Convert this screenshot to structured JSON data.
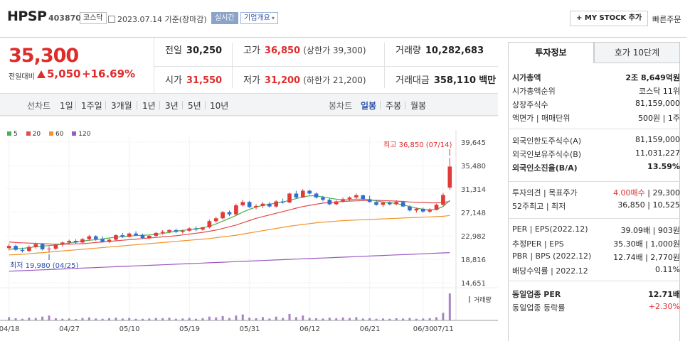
{
  "header": {
    "stock_name": "HPSP",
    "stock_code": "403870",
    "market": "코스닥",
    "date_text": "2023.07.14 기준(장마감)",
    "realtime_label": "실시간",
    "company_info_label": "기업개요",
    "mystock_label": "MY STOCK 추가",
    "quick_order_label": "빠른주문"
  },
  "price": {
    "current": "35,300",
    "change_label": "전일대비",
    "change": "5,050",
    "change_pct": "+16.69%"
  },
  "stats": {
    "prev_close_label": "전일",
    "prev_close": "30,250",
    "high_label": "고가",
    "high": "36,850",
    "upper_limit": "(상한가 39,300)",
    "volume_label": "거래량",
    "volume": "10,282,683",
    "open_label": "시가",
    "open": "31,550",
    "low_label": "저가",
    "low": "31,200",
    "lower_limit": "(하한가 21,200)",
    "amount_label": "거래대금",
    "amount": "358,110",
    "amount_unit": "백만"
  },
  "period_tabs": {
    "line_chart": "선차트",
    "items": [
      "1일",
      "1주일",
      "3개월",
      "1년",
      "3년",
      "5년",
      "10년"
    ],
    "candle_chart": "봉차트",
    "candle_items": [
      "일봉",
      "주봉",
      "월봉"
    ],
    "selected": "일봉"
  },
  "legend": [
    {
      "label": "5",
      "color": "#4caf50"
    },
    {
      "label": "20",
      "color": "#e34a4a"
    },
    {
      "label": "60",
      "color": "#f2932b"
    },
    {
      "label": "120",
      "color": "#9b59c4"
    }
  ],
  "chart_data": {
    "type": "candlestick",
    "y_ticks": [
      "39,645",
      "35,480",
      "31,314",
      "27,148",
      "22,982",
      "18,816",
      "14,651"
    ],
    "ylim": [
      14651,
      39645
    ],
    "x_labels": [
      "04/18",
      "04/27",
      "05/10",
      "05/19",
      "05/31",
      "06/12",
      "06/21",
      "06/30",
      "07/11"
    ],
    "max_annotation": "최고 36,850 (07/14)",
    "min_annotation": "최저 19,980 (04/25)",
    "volume_label": "거래량",
    "candles": [
      [
        20800,
        21600,
        20400,
        21200
      ],
      [
        21200,
        21500,
        20300,
        20500
      ],
      [
        20500,
        20900,
        20000,
        20300
      ],
      [
        20300,
        21300,
        20100,
        21000
      ],
      [
        21000,
        21800,
        20700,
        21500
      ],
      [
        21500,
        21700,
        20400,
        20600
      ],
      [
        20600,
        21100,
        19980,
        20700
      ],
      [
        20700,
        21600,
        20500,
        21400
      ],
      [
        21400,
        22000,
        21100,
        21800
      ],
      [
        21800,
        22300,
        21500,
        22100
      ],
      [
        22100,
        22400,
        21600,
        21800
      ],
      [
        21800,
        22600,
        21600,
        22400
      ],
      [
        22400,
        23200,
        22100,
        22900
      ],
      [
        22900,
        23100,
        22100,
        22400
      ],
      [
        22400,
        22900,
        21800,
        21900
      ],
      [
        21900,
        22500,
        21700,
        22300
      ],
      [
        22300,
        23300,
        22100,
        23100
      ],
      [
        23100,
        23500,
        22600,
        22800
      ],
      [
        22800,
        23600,
        22700,
        23400
      ],
      [
        23400,
        23800,
        22900,
        23100
      ],
      [
        23100,
        23400,
        22400,
        22600
      ],
      [
        22600,
        23100,
        22400,
        23000
      ],
      [
        23000,
        23700,
        22800,
        23500
      ],
      [
        23500,
        24000,
        23200,
        23700
      ],
      [
        23700,
        24200,
        23400,
        24000
      ],
      [
        24000,
        24300,
        23500,
        23700
      ],
      [
        23700,
        24100,
        23400,
        23900
      ],
      [
        23900,
        24500,
        23700,
        24300
      ],
      [
        24300,
        24700,
        23800,
        24100
      ],
      [
        24100,
        24600,
        23900,
        24500
      ],
      [
        24500,
        25900,
        24300,
        25600
      ],
      [
        25600,
        26400,
        25300,
        26100
      ],
      [
        26100,
        27400,
        25900,
        27200
      ],
      [
        27200,
        27500,
        26500,
        26800
      ],
      [
        26800,
        28700,
        26600,
        28400
      ],
      [
        28400,
        29400,
        28200,
        29000
      ],
      [
        29000,
        29200,
        27900,
        28100
      ],
      [
        28100,
        28600,
        27700,
        28300
      ],
      [
        28300,
        29000,
        27900,
        28700
      ],
      [
        28700,
        29000,
        28000,
        28200
      ],
      [
        28200,
        29300,
        28000,
        29100
      ],
      [
        29100,
        29600,
        28700,
        28900
      ],
      [
        28900,
        30700,
        28800,
        30500
      ],
      [
        30500,
        31000,
        29600,
        29800
      ],
      [
        29800,
        31300,
        29700,
        31000
      ],
      [
        31000,
        31200,
        30300,
        30500
      ],
      [
        30500,
        30700,
        29600,
        29800
      ],
      [
        29800,
        30100,
        29100,
        29400
      ],
      [
        29400,
        29700,
        28400,
        28600
      ],
      [
        28600,
        29300,
        28400,
        29100
      ],
      [
        29100,
        29800,
        28900,
        29500
      ],
      [
        29500,
        30000,
        29200,
        29800
      ],
      [
        29800,
        30500,
        29500,
        30200
      ],
      [
        30200,
        30300,
        29300,
        29500
      ],
      [
        29500,
        30100,
        28900,
        29000
      ],
      [
        29000,
        29300,
        28300,
        28500
      ],
      [
        28500,
        29100,
        28100,
        28900
      ],
      [
        28900,
        29100,
        28400,
        28600
      ],
      [
        28600,
        29300,
        28400,
        29000
      ],
      [
        29000,
        29200,
        28100,
        28200
      ],
      [
        28200,
        28400,
        27300,
        27500
      ],
      [
        27500,
        28000,
        27100,
        27800
      ],
      [
        27800,
        28000,
        27100,
        27300
      ],
      [
        27300,
        27900,
        27000,
        27600
      ],
      [
        27600,
        28700,
        27500,
        28500
      ],
      [
        28500,
        30600,
        28300,
        30250
      ],
      [
        31550,
        36850,
        31200,
        35300
      ]
    ],
    "volumes": [
      12,
      8,
      6,
      10,
      9,
      14,
      18,
      8,
      6,
      7,
      5,
      9,
      11,
      7,
      6,
      8,
      10,
      7,
      9,
      6,
      6,
      7,
      9,
      8,
      10,
      6,
      7,
      9,
      6,
      8,
      14,
      11,
      16,
      9,
      18,
      22,
      10,
      8,
      12,
      7,
      14,
      9,
      24,
      12,
      18,
      9,
      8,
      7,
      10,
      8,
      11,
      9,
      12,
      7,
      8,
      6,
      7,
      6,
      8,
      7,
      9,
      6,
      7,
      8,
      12,
      28,
      100
    ],
    "ma5": [
      20600,
      20700,
      20750,
      20900,
      21050,
      21150,
      21250,
      21350,
      21500,
      21700,
      21900,
      22050,
      22200,
      22300,
      22450,
      22600,
      22750,
      22850,
      22950,
      23050,
      23100,
      23150,
      23250,
      23400,
      23600,
      23800,
      23950,
      24100,
      24250,
      24400,
      24700,
      25100,
      25600,
      26100,
      26600,
      27200,
      27700,
      28100,
      28400,
      28600,
      28800,
      29000,
      29300,
      29600,
      29900,
      30100,
      30100,
      29900,
      29700,
      29500,
      29400,
      29400,
      29500,
      29500,
      29400,
      29200,
      29000,
      28900,
      28700,
      28500,
      28200,
      27900,
      27700,
      27600,
      27700,
      28200,
      29300
    ],
    "ma20": [
      21900,
      21800,
      21750,
      21700,
      21650,
      21600,
      21550,
      21500,
      21500,
      21500,
      21550,
      21600,
      21700,
      21800,
      21900,
      22000,
      22100,
      22200,
      22300,
      22400,
      22500,
      22600,
      22700,
      22800,
      22900,
      23000,
      23150,
      23300,
      23450,
      23600,
      23800,
      24000,
      24300,
      24600,
      24900,
      25300,
      25700,
      26100,
      26400,
      26700,
      27000,
      27300,
      27600,
      27900,
      28200,
      28400,
      28600,
      28800,
      28900,
      29000,
      29100,
      29150,
      29200,
      29250,
      29300,
      29300,
      29250,
      29200,
      29150,
      29100,
      29000,
      28950,
      28900,
      28850,
      28850,
      28900,
      29100
    ],
    "ma60": [
      19600,
      19650,
      19700,
      19800,
      19900,
      20000,
      20100,
      20200,
      20300,
      20400,
      20500,
      20600,
      20700,
      20800,
      20900,
      21000,
      21100,
      21200,
      21300,
      21400,
      21500,
      21600,
      21700,
      21800,
      21900,
      22000,
      22100,
      22200,
      22300,
      22400,
      22500,
      22650,
      22800,
      22950,
      23100,
      23300,
      23500,
      23700,
      23900,
      24100,
      24300,
      24500,
      24700,
      24850,
      25000,
      25150,
      25300,
      25400,
      25500,
      25600,
      25700,
      25750,
      25800,
      25850,
      25900,
      25950,
      26000,
      26050,
      26100,
      26150,
      26200,
      26250,
      26300,
      26350,
      26400,
      26450,
      26600
    ],
    "ma120": [
      16700,
      16750,
      16800,
      16850,
      16900,
      16950,
      17000,
      17050,
      17100,
      17150,
      17200,
      17250,
      17300,
      17350,
      17400,
      17450,
      17500,
      17550,
      17600,
      17650,
      17700,
      17750,
      17800,
      17850,
      17900,
      17950,
      18000,
      18050,
      18100,
      18150,
      18200,
      18250,
      18300,
      18350,
      18400,
      18450,
      18500,
      18550,
      18600,
      18650,
      18700,
      18750,
      18800,
      18850,
      18900,
      18950,
      19000,
      19050,
      19100,
      19150,
      19200,
      19250,
      19300,
      19350,
      19400,
      19450,
      19500,
      19550,
      19600,
      19650,
      19700,
      19750,
      19800,
      19850,
      19900,
      19950,
      20000
    ]
  },
  "side": {
    "tab_invest": "투자정보",
    "tab_orderbook": "호가 10단계",
    "rows1": [
      {
        "label": "시가총액",
        "value": "2조 8,649억원",
        "bold": true
      },
      {
        "label": "시가총액순위",
        "value": "코스닥 11위"
      },
      {
        "label": "상장주식수",
        "value": "81,159,000"
      },
      {
        "label": "액면가 | 매매단위",
        "value": "500원 | 1주"
      }
    ],
    "rows2": [
      {
        "label": "외국인한도주식수(A)",
        "value": "81,159,000"
      },
      {
        "label": "외국인보유주식수(B)",
        "value": "11,031,227"
      },
      {
        "label": "외국인소진율(B/A)",
        "value": "13.59%",
        "bold": true
      }
    ],
    "rows3": [
      {
        "label": "투자의견 | 목표주가",
        "value_red": "4.00매수",
        "value": " | 29,300"
      },
      {
        "label": "52주최고 | 최저",
        "value": "36,850 | 10,525"
      }
    ],
    "rows4": [
      {
        "label": "PER | EPS(2022.12)",
        "value": "39.09배 | 903원"
      },
      {
        "label": "추정PER | EPS",
        "value": "35.30배 | 1,000원"
      },
      {
        "label": "PBR | BPS (2022.12)",
        "value": "12.74배 | 2,770원"
      },
      {
        "label": "배당수익률 | 2022.12",
        "value": "0.11%"
      }
    ],
    "rows5": [
      {
        "label": "동일업종 PER",
        "value": "12.71배",
        "bold": true
      },
      {
        "label": "동일업종 등락률",
        "value": "+2.30%",
        "red": true
      }
    ]
  }
}
